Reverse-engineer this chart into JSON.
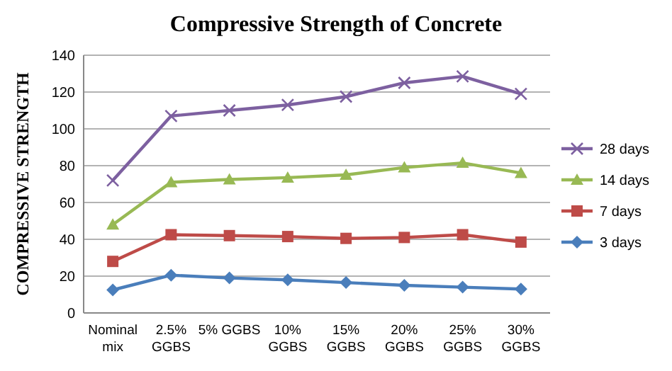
{
  "chart_data": {
    "type": "line",
    "title": "Compressive Strength of Concrete",
    "ylabel": "COMPRESSIVE STRENGTH",
    "categories": [
      "Nominal mix",
      "2.5% GGBS",
      "5% GGBS",
      "10% GGBS",
      "15% GGBS",
      "20% GGBS",
      "25% GGBS",
      "30% GGBS"
    ],
    "series": [
      {
        "name": "28 days",
        "color": "#7d60a0",
        "marker": "cross",
        "values": [
          72,
          107,
          110,
          113,
          117.5,
          125,
          128.5,
          119
        ]
      },
      {
        "name": "14 days",
        "color": "#98b954",
        "marker": "triangle",
        "values": [
          48,
          71,
          72.5,
          73.5,
          75,
          79,
          81.5,
          76
        ]
      },
      {
        "name": "7 days",
        "color": "#be4b48",
        "marker": "square",
        "values": [
          28,
          42.5,
          42,
          41.5,
          40.5,
          41,
          42.5,
          38.5
        ]
      },
      {
        "name": "3 days",
        "color": "#4a7ebb",
        "marker": "diamond",
        "values": [
          12.5,
          20.5,
          19,
          18,
          16.5,
          15,
          14,
          13
        ]
      }
    ],
    "ylim": [
      0,
      140
    ],
    "yticks": [
      0,
      20,
      40,
      60,
      80,
      100,
      120,
      140
    ],
    "grid": "y",
    "legend": "right"
  }
}
